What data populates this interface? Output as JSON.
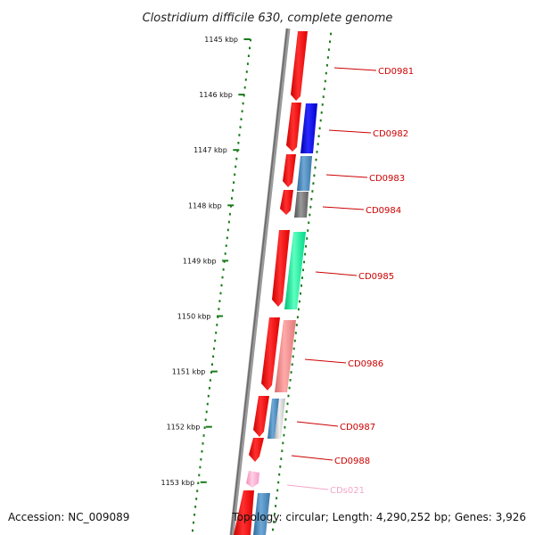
{
  "title": "Clostridium difficile 630, complete genome",
  "accession": "Accession: NC_009089",
  "topology": "Topology: circular; Length: 4,290,252 bp; Genes: 3,926",
  "colors": {
    "backbone": "#8a8a8a",
    "dots": "#1a7a1a",
    "forward_gene": "#ff0000",
    "label_red": "#cc0000",
    "label_pink": "#f4a6c8"
  },
  "kbp_ticks": [
    "1145 kbp",
    "1146 kbp",
    "1147 kbp",
    "1148 kbp",
    "1149 kbp",
    "1150 kbp",
    "1151 kbp",
    "1152 kbp",
    "1153 kbp"
  ],
  "genes": [
    {
      "name": "CD0981",
      "color": "#ff0000"
    },
    {
      "name": "CD0982",
      "color": "#0000ee"
    },
    {
      "name": "CD0983",
      "color": "#4682b4"
    },
    {
      "name": "CD0984",
      "color": "#707070"
    },
    {
      "name": "CD0985",
      "color": "#00ee99"
    },
    {
      "name": "CD0986",
      "color": "#f08080"
    },
    {
      "name": "CD0987",
      "color": "#c8c8c8"
    },
    {
      "name": "CD0988",
      "color": "#ff0000"
    },
    {
      "name": "CDs021",
      "color": "#ffaacc"
    }
  ]
}
